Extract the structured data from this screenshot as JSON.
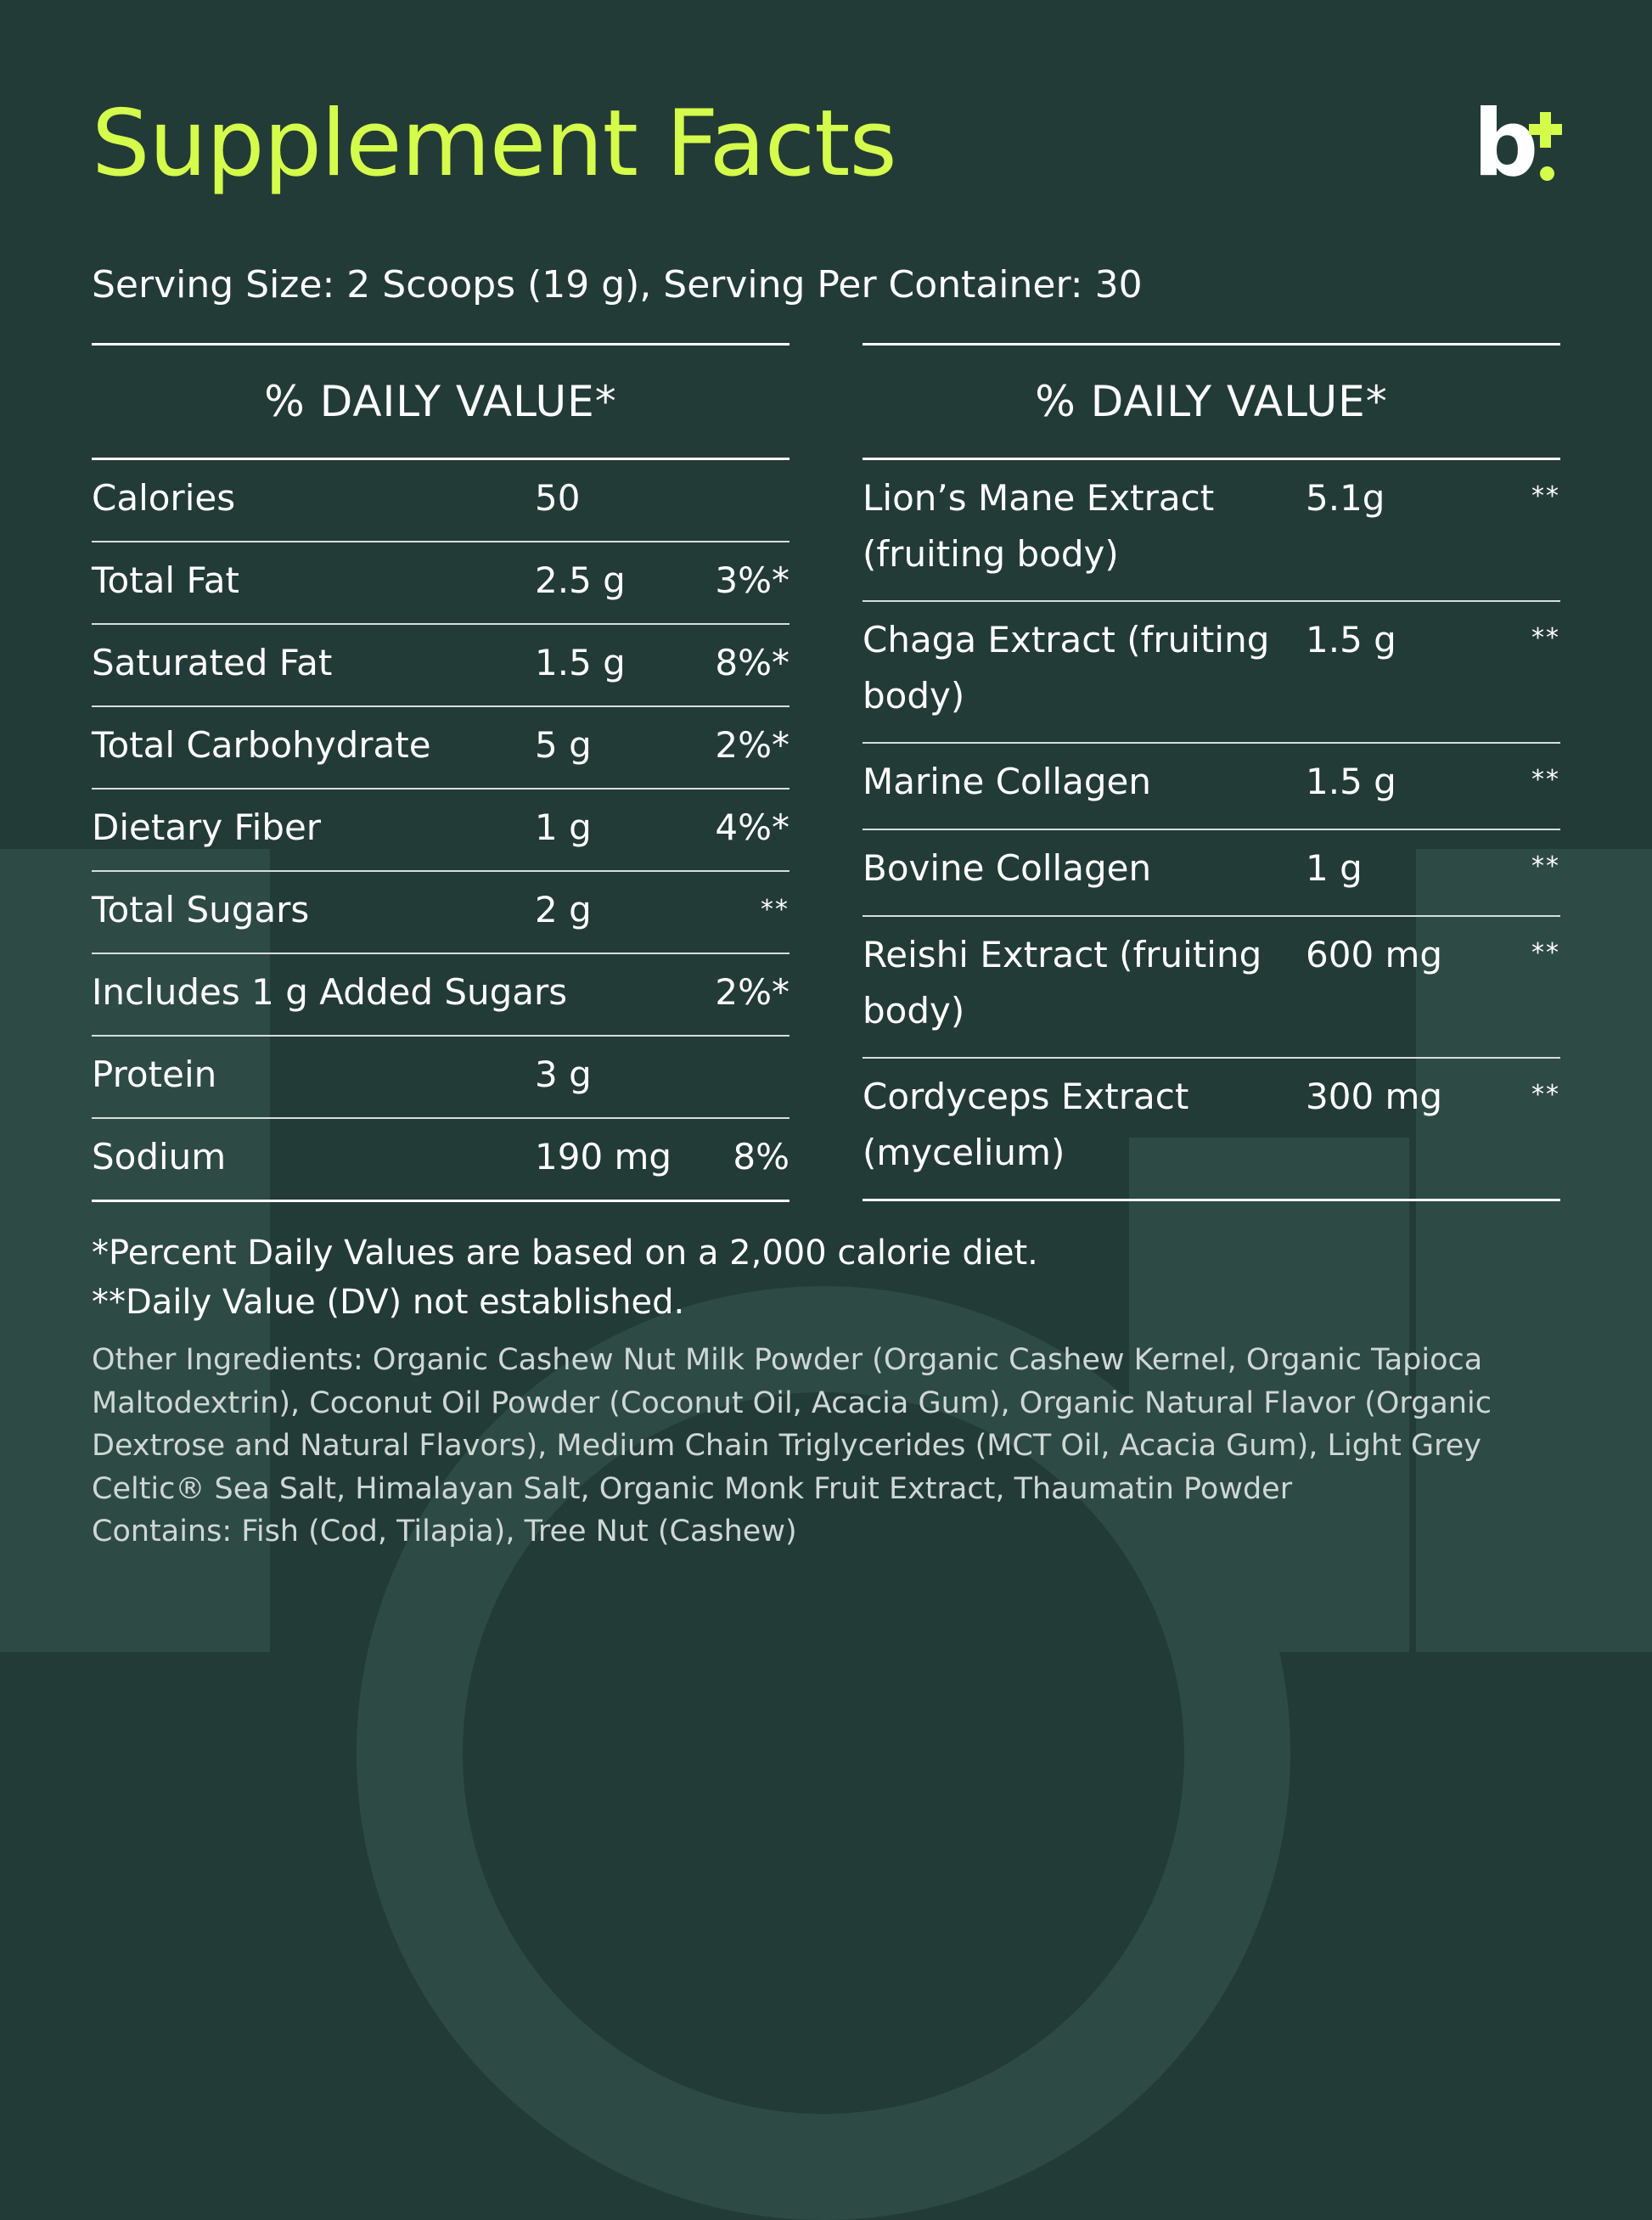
{
  "title": "Supplement Facts",
  "logo": {
    "letter": "b",
    "icon": "plus-icon"
  },
  "serving": "Serving Size: 2 Scoops (19 g), Serving Per Container: 30",
  "left_panel": {
    "header": "% DAILY VALUE*",
    "rows": [
      {
        "name": "Calories",
        "amount": "50",
        "dv": ""
      },
      {
        "name": "Total Fat",
        "amount": "2.5 g",
        "dv": "3%*"
      },
      {
        "name": "Saturated Fat",
        "amount": "1.5 g",
        "dv": "8%*"
      },
      {
        "name": "Total Carbohydrate",
        "amount": "5 g",
        "dv": "2%*"
      },
      {
        "name": "Dietary Fiber",
        "amount": "1 g",
        "dv": "4%*"
      },
      {
        "name": "Total Sugars",
        "amount": "2 g",
        "dv": "**"
      },
      {
        "name": "Includes 1 g Added Sugars",
        "amount": "",
        "dv": "2%*"
      },
      {
        "name": "Protein",
        "amount": "3 g",
        "dv": ""
      },
      {
        "name": "Sodium",
        "amount": "190 mg",
        "dv": "8%"
      }
    ]
  },
  "right_panel": {
    "header": "% DAILY VALUE*",
    "rows": [
      {
        "name": "Lion’s Mane Extract (fruiting body)",
        "amount": "5.1g",
        "dv": "**"
      },
      {
        "name": "Chaga Extract (fruiting body)",
        "amount": "1.5 g",
        "dv": "**"
      },
      {
        "name": "Marine Collagen",
        "amount": "1.5 g",
        "dv": "**"
      },
      {
        "name": "Bovine Collagen",
        "amount": "1 g",
        "dv": "**"
      },
      {
        "name": "Reishi Extract (fruiting body)",
        "amount": "600 mg",
        "dv": "**"
      },
      {
        "name": "Cordyceps Extract (mycelium)",
        "amount": "300 mg",
        "dv": "**"
      }
    ]
  },
  "footnotes": {
    "percent": "*Percent Daily Values are based on a 2,000 calorie diet.",
    "not_established": "**Daily Value (DV) not established."
  },
  "ingredients": {
    "lines": [
      "Other Ingredients: Organic Cashew Nut Milk Powder (Organic Cashew Kernel, Organic Tapioca",
      "Maltodextrin), Coconut Oil Powder (Coconut Oil, Acacia Gum), Organic Natural Flavor (Organic",
      "Dextrose and Natural Flavors), Medium Chain Triglycerides (MCT Oil, Acacia Gum), Light Grey",
      "Celtic® Sea Salt, Himalayan Salt, Organic Monk Fruit Extract, Thaumatin Powder",
      "Contains: Fish (Cod, Tilapia), Tree Nut (Cashew)"
    ]
  },
  "colors": {
    "background": "#233b37",
    "background_shape": "#2e4a44",
    "accent": "#d4fc4b",
    "text": "#ffffff"
  }
}
